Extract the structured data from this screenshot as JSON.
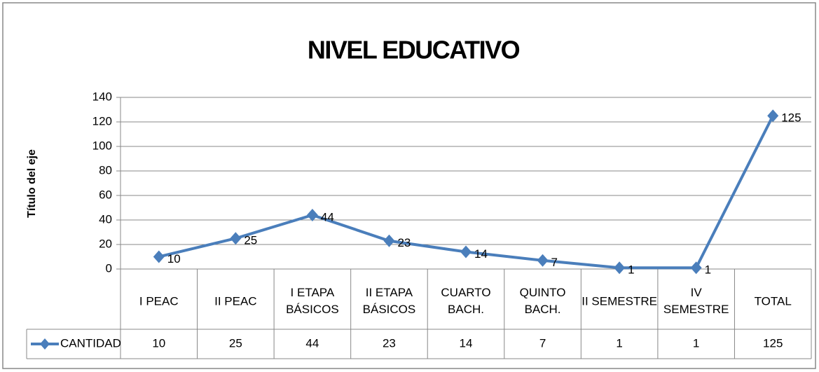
{
  "chart_data": {
    "type": "line",
    "title": "NIVEL EDUCATIVO",
    "y_label": "Título del eje",
    "categories": [
      "I PEAC",
      "II PEAC",
      "I ETAPA\nBÁSICOS",
      "II ETAPA\nBÁSICOS",
      "CUARTO\nBACH.",
      "QUINTO\nBACH.",
      "II SEMESTRE",
      "IV\nSEMESTRE",
      "TOTAL"
    ],
    "series": [
      {
        "name": "CANTIDAD",
        "color": "#4a7ebb",
        "values": [
          10,
          25,
          44,
          23,
          14,
          7,
          1,
          1,
          125
        ]
      }
    ],
    "ylim": [
      0,
      140
    ],
    "yticks": [
      0,
      20,
      40,
      60,
      80,
      100,
      120,
      140
    ],
    "grid": true,
    "data_table": true
  }
}
